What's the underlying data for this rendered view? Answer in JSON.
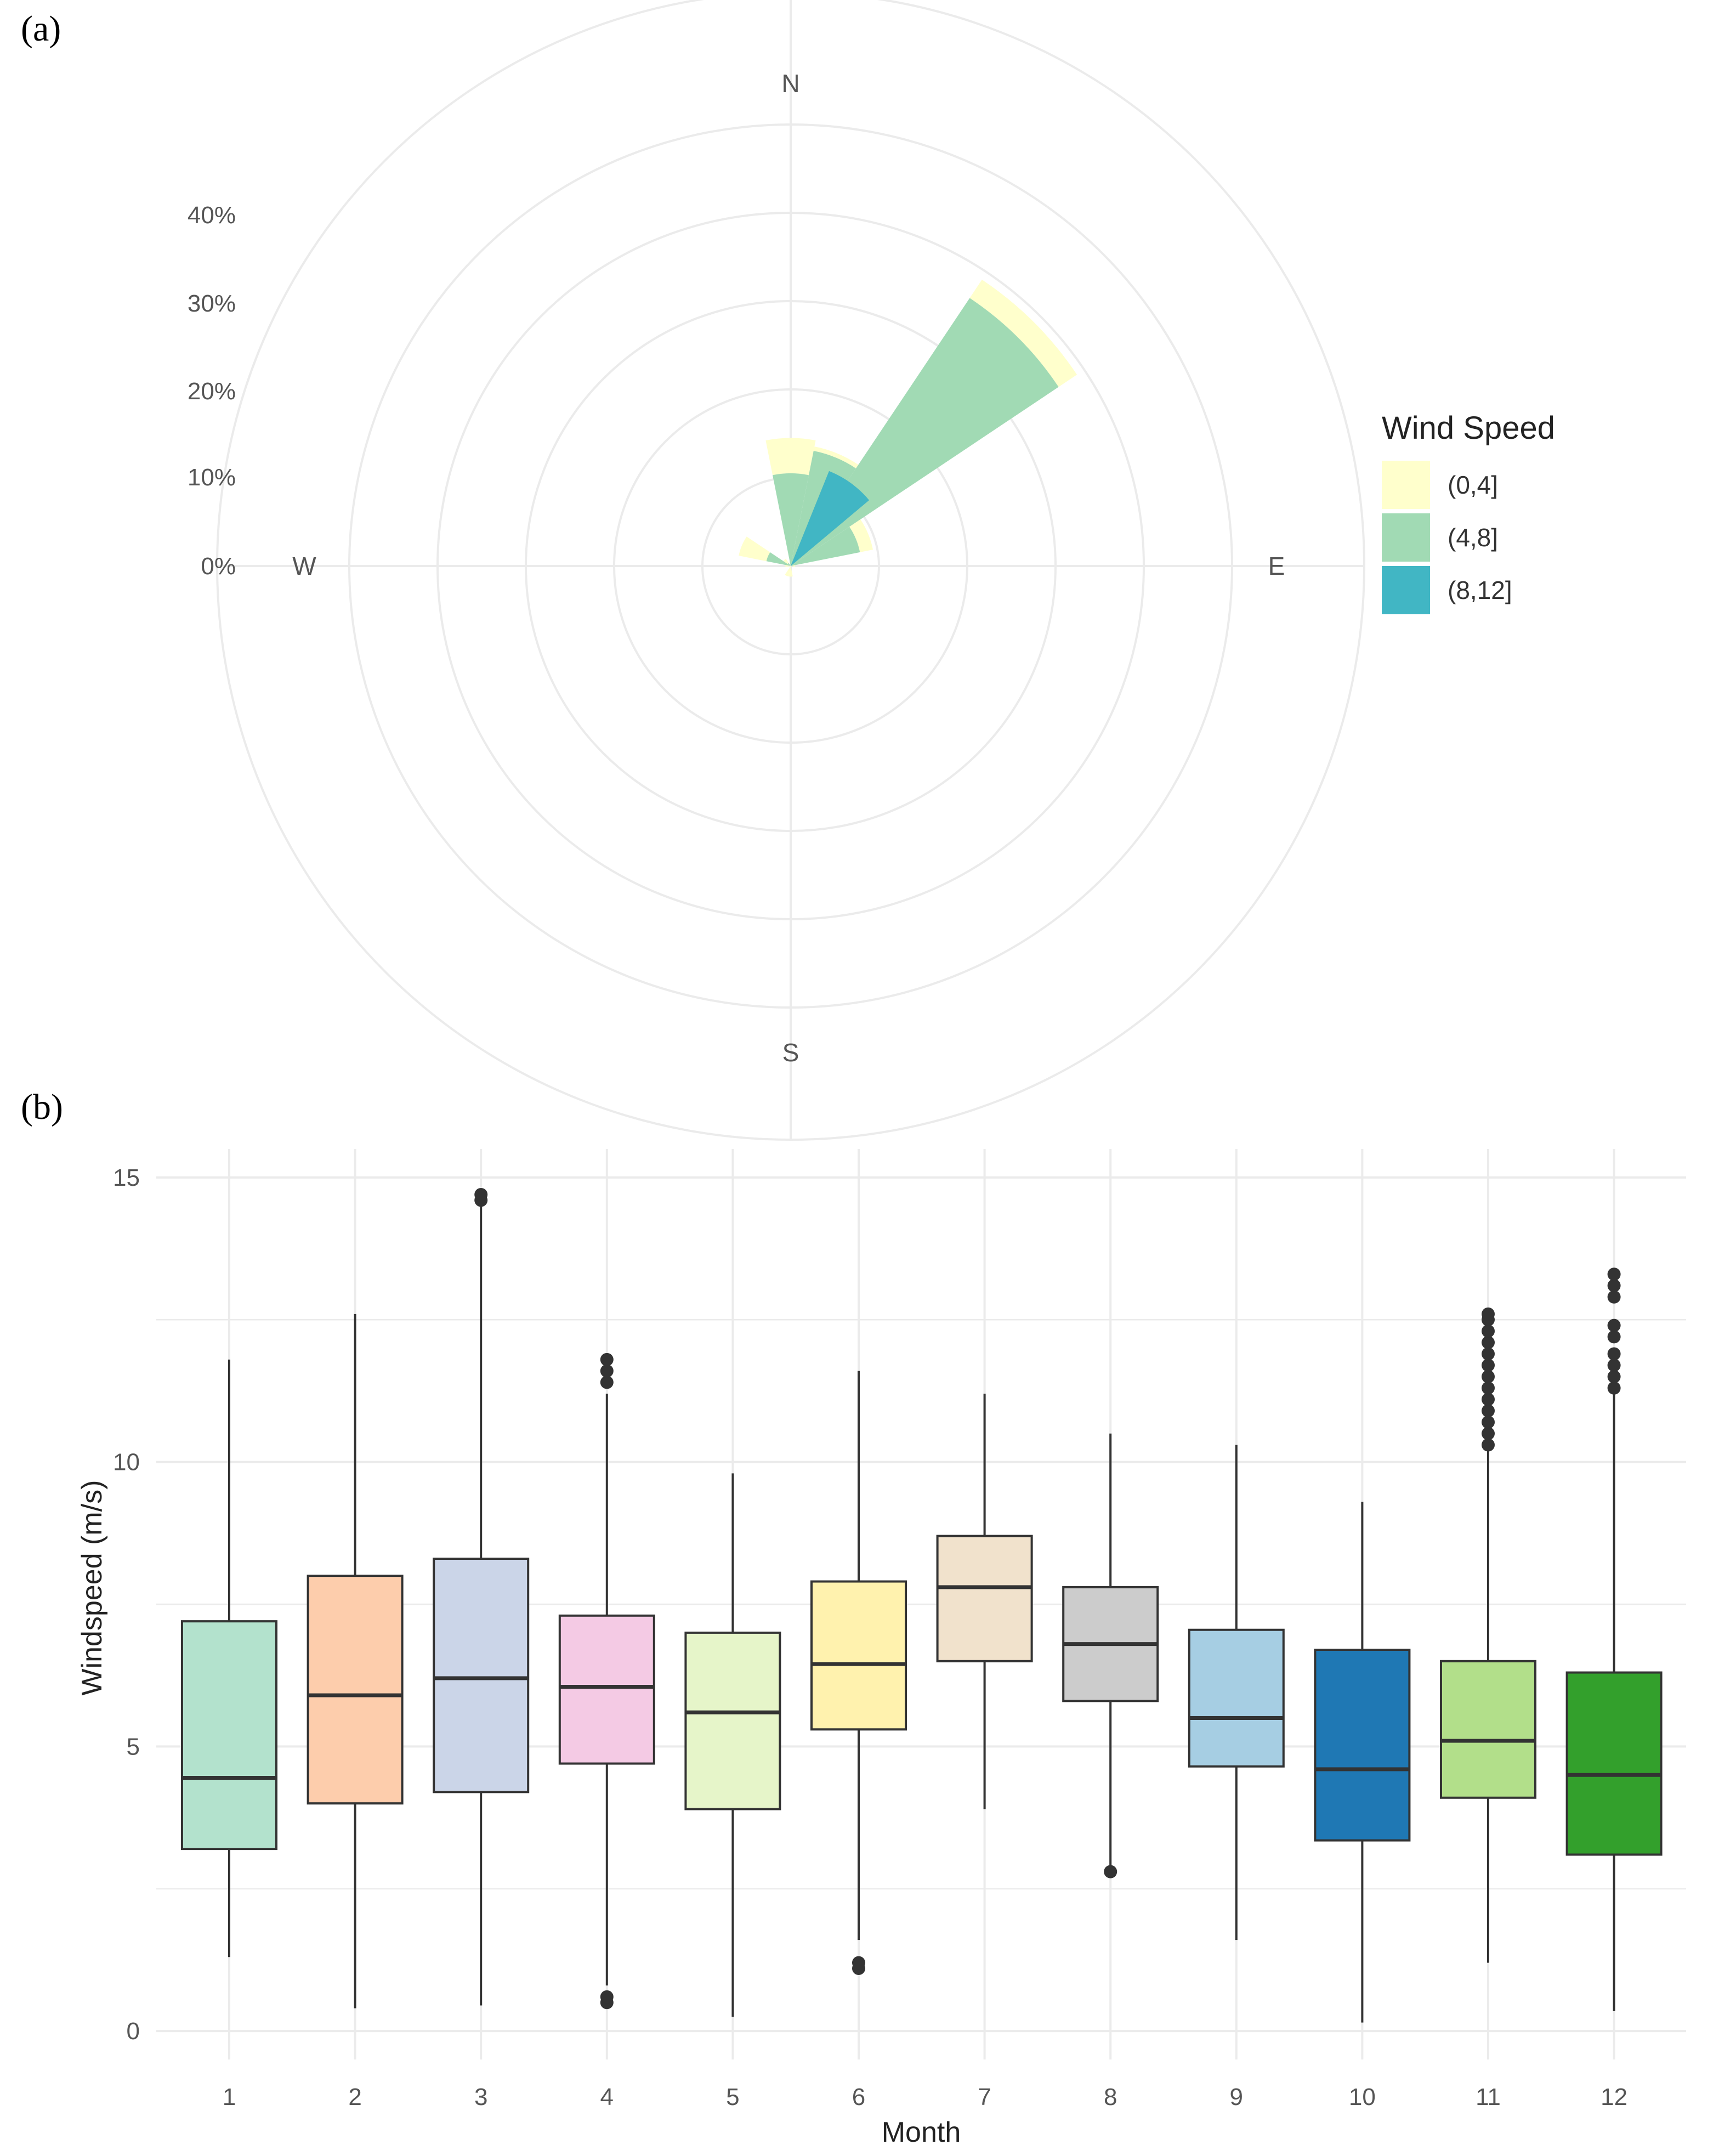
{
  "chart_data": [
    {
      "type": "windrose",
      "panel_label": "(a)",
      "directions": [
        "N",
        "E",
        "S",
        "W"
      ],
      "radial_ticks": [
        "0%",
        "10%",
        "20%",
        "30%",
        "40%"
      ],
      "radial_max": 55,
      "legend": {
        "title": "Wind Speed",
        "placement": "right",
        "entries": [
          {
            "label": "(0,4]",
            "color": "#ffffcc"
          },
          {
            "label": "(4,8]",
            "color": "#a1dab4"
          },
          {
            "label": "(8,12]",
            "color": "#41b6c4"
          }
        ]
      },
      "sector_width_deg": 22.5,
      "sectors": [
        {
          "direction_deg": 0,
          "values": [
            4.0,
            10.5,
            0.0
          ]
        },
        {
          "direction_deg": 22.5,
          "values": [
            0.5,
            13.3,
            0.0
          ]
        },
        {
          "direction_deg": 45,
          "values": [
            2.5,
            36.5,
            0.0
          ]
        },
        {
          "direction_deg": 67.5,
          "values": [
            1.5,
            8.0,
            0.0
          ]
        },
        {
          "direction_deg": 90,
          "values": [
            0.3,
            0.2,
            0.0
          ]
        },
        {
          "direction_deg": 180,
          "values": [
            1.2,
            0.0,
            0.0
          ]
        },
        {
          "direction_deg": 202.5,
          "values": [
            1.2,
            0.0,
            0.0
          ]
        },
        {
          "direction_deg": 270,
          "values": [
            0.6,
            0.0,
            0.0
          ]
        },
        {
          "direction_deg": 292.5,
          "values": [
            3.2,
            2.8,
            0.0
          ]
        },
        {
          "direction_deg": 315,
          "values": [
            0.6,
            0.4,
            0.0
          ]
        }
      ],
      "inner_sectors": [
        {
          "start_deg": 22,
          "end_deg": 50,
          "radius": 11.6,
          "layer": 2
        }
      ],
      "grid": true
    },
    {
      "type": "box",
      "panel_label": "(b)",
      "xlabel": "Month",
      "ylabel": "Windspeed (m/s)",
      "ylim": [
        -0.5,
        15.5
      ],
      "yticks": [
        0,
        5,
        10,
        15
      ],
      "categories": [
        "1",
        "2",
        "3",
        "4",
        "5",
        "6",
        "7",
        "8",
        "9",
        "10",
        "11",
        "12"
      ],
      "grid": true,
      "series": [
        {
          "category": "1",
          "color": "#b3e2cd",
          "whisker_low": 1.3,
          "q1": 3.2,
          "median": 4.45,
          "q3": 7.2,
          "whisker_high": 11.8,
          "outliers": []
        },
        {
          "category": "2",
          "color": "#fdcdac",
          "whisker_low": 0.4,
          "q1": 4.0,
          "median": 5.9,
          "q3": 8.0,
          "whisker_high": 12.6,
          "outliers": []
        },
        {
          "category": "3",
          "color": "#cbd5e8",
          "whisker_low": 0.45,
          "q1": 4.2,
          "median": 6.2,
          "q3": 8.3,
          "whisker_high": 14.5,
          "outliers": [
            14.6,
            14.7
          ]
        },
        {
          "category": "4",
          "color": "#f4cae4",
          "whisker_low": 0.8,
          "q1": 4.7,
          "median": 6.05,
          "q3": 7.3,
          "whisker_high": 11.2,
          "outliers": [
            11.4,
            11.6,
            11.8,
            0.5,
            0.6
          ]
        },
        {
          "category": "5",
          "color": "#e6f5c9",
          "whisker_low": 0.25,
          "q1": 3.9,
          "median": 5.6,
          "q3": 7.0,
          "whisker_high": 9.8,
          "outliers": []
        },
        {
          "category": "6",
          "color": "#fff2ae",
          "whisker_low": 1.6,
          "q1": 5.3,
          "median": 6.45,
          "q3": 7.9,
          "whisker_high": 11.6,
          "outliers": [
            1.1,
            1.2
          ]
        },
        {
          "category": "7",
          "color": "#f1e2cc",
          "whisker_low": 3.9,
          "q1": 6.5,
          "median": 7.8,
          "q3": 8.7,
          "whisker_high": 11.2,
          "outliers": []
        },
        {
          "category": "8",
          "color": "#cccccc",
          "whisker_low": 2.9,
          "q1": 5.8,
          "median": 6.8,
          "q3": 7.8,
          "whisker_high": 10.5,
          "outliers": [
            2.8
          ]
        },
        {
          "category": "9",
          "color": "#a6cee3",
          "whisker_low": 1.6,
          "q1": 4.65,
          "median": 5.5,
          "q3": 7.05,
          "whisker_high": 10.3,
          "outliers": []
        },
        {
          "category": "10",
          "color": "#1f78b4",
          "whisker_low": 0.15,
          "q1": 3.35,
          "median": 4.6,
          "q3": 6.7,
          "whisker_high": 9.3,
          "outliers": []
        },
        {
          "category": "11",
          "color": "#b2df8a",
          "whisker_low": 1.2,
          "q1": 4.1,
          "median": 5.1,
          "q3": 6.5,
          "whisker_high": 10.2,
          "outliers": [
            10.3,
            10.5,
            10.7,
            10.9,
            11.1,
            11.3,
            11.5,
            11.7,
            11.9,
            12.1,
            12.3,
            12.5,
            12.6
          ]
        },
        {
          "category": "12",
          "color": "#33a02c",
          "whisker_low": 0.35,
          "q1": 3.1,
          "median": 4.5,
          "q3": 6.3,
          "whisker_high": 11.2,
          "outliers": [
            11.3,
            11.5,
            11.7,
            11.9,
            12.2,
            12.4,
            12.9,
            13.1,
            13.3
          ]
        }
      ]
    }
  ]
}
